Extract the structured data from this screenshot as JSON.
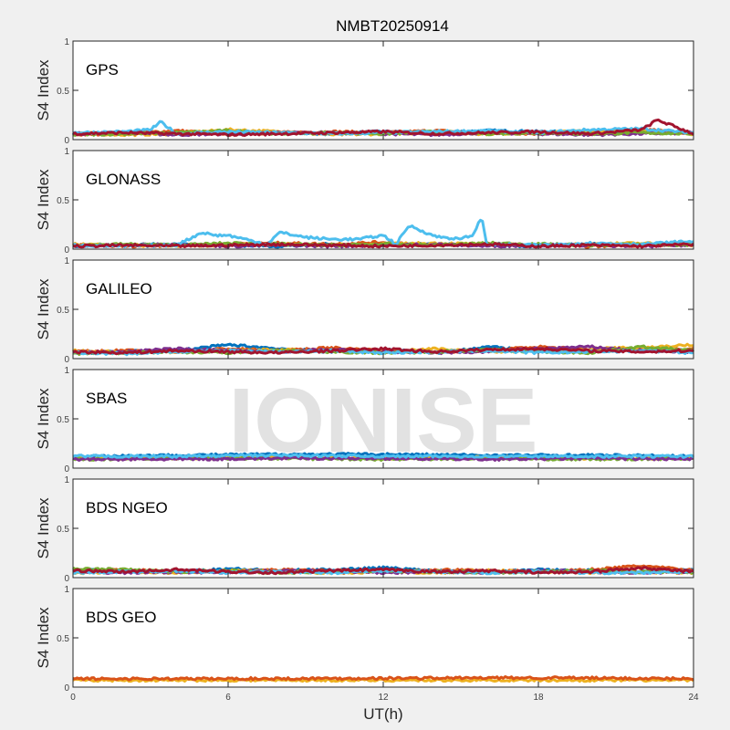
{
  "title": "NMBT20250914",
  "watermark": "IONISE",
  "xlabel": "UT(h)",
  "ylabel": "S4 Index",
  "xlim": [
    0,
    24
  ],
  "ylim": [
    0,
    1
  ],
  "xticks": [
    "0",
    "6",
    "12",
    "18",
    "24"
  ],
  "yticks": [
    "0",
    "0.5",
    "1"
  ],
  "chart_data": [
    {
      "type": "line",
      "title": "GPS",
      "xlabel": "UT(h)",
      "ylabel": "S4 Index",
      "xlim": [
        0,
        24
      ],
      "ylim": [
        0,
        1
      ],
      "series": [
        {
          "color": "#0072BD",
          "x": [
            0,
            2,
            4,
            6,
            8,
            10,
            12,
            14,
            16,
            18,
            20,
            22,
            24
          ],
          "y": [
            0.06,
            0.07,
            0.06,
            0.08,
            0.07,
            0.06,
            0.08,
            0.07,
            0.09,
            0.08,
            0.07,
            0.08,
            0.06
          ]
        },
        {
          "color": "#D95319",
          "x": [
            0,
            2,
            4,
            6,
            8,
            10,
            12,
            14,
            16,
            18,
            20,
            22,
            24
          ],
          "y": [
            0.05,
            0.06,
            0.09,
            0.06,
            0.07,
            0.08,
            0.07,
            0.09,
            0.07,
            0.06,
            0.08,
            0.1,
            0.07
          ]
        },
        {
          "color": "#EDB120",
          "x": [
            0,
            2,
            4,
            6,
            8,
            10,
            12,
            14,
            16,
            18,
            20,
            22,
            24
          ],
          "y": [
            0.07,
            0.05,
            0.06,
            0.1,
            0.08,
            0.05,
            0.06,
            0.07,
            0.06,
            0.07,
            0.09,
            0.1,
            0.05
          ]
        },
        {
          "color": "#7E2F8E",
          "x": [
            0,
            2,
            4,
            6,
            8,
            10,
            12,
            14,
            16,
            18,
            20,
            22,
            24
          ],
          "y": [
            0.06,
            0.07,
            0.05,
            0.06,
            0.07,
            0.07,
            0.06,
            0.05,
            0.07,
            0.06,
            0.05,
            0.06,
            0.07
          ]
        },
        {
          "color": "#77AC30",
          "x": [
            0,
            2,
            4,
            6,
            8,
            10,
            12,
            14,
            16,
            18,
            20,
            22,
            24
          ],
          "y": [
            0.05,
            0.06,
            0.07,
            0.09,
            0.06,
            0.07,
            0.06,
            0.08,
            0.06,
            0.07,
            0.06,
            0.07,
            0.06
          ]
        },
        {
          "color": "#4DBEEE",
          "x": [
            0,
            2,
            3,
            3.4,
            4,
            6,
            8,
            10,
            12,
            14,
            16,
            18,
            20,
            22,
            24
          ],
          "y": [
            0.07,
            0.08,
            0.1,
            0.18,
            0.06,
            0.08,
            0.07,
            0.06,
            0.07,
            0.08,
            0.09,
            0.07,
            0.1,
            0.11,
            0.07
          ]
        },
        {
          "color": "#A2142F",
          "x": [
            0,
            2,
            4,
            6,
            8,
            10,
            12,
            14,
            16,
            18,
            20,
            22,
            22.6,
            24
          ],
          "y": [
            0.06,
            0.07,
            0.06,
            0.05,
            0.06,
            0.07,
            0.08,
            0.06,
            0.07,
            0.08,
            0.06,
            0.1,
            0.2,
            0.06
          ]
        }
      ]
    },
    {
      "type": "line",
      "title": "GLONASS",
      "xlabel": "UT(h)",
      "ylabel": "S4 Index",
      "xlim": [
        0,
        24
      ],
      "ylim": [
        0,
        1
      ],
      "series": [
        {
          "color": "#0072BD",
          "x": [
            0,
            2,
            4,
            6,
            8,
            10,
            12,
            14,
            16,
            18,
            20,
            22,
            24
          ],
          "y": [
            0.03,
            0.04,
            0.05,
            0.04,
            0.03,
            0.05,
            0.04,
            0.05,
            0.04,
            0.03,
            0.05,
            0.04,
            0.06
          ]
        },
        {
          "color": "#D95319",
          "x": [
            0,
            2,
            4,
            6,
            8,
            10,
            12,
            14,
            16,
            18,
            20,
            22,
            24
          ],
          "y": [
            0.04,
            0.03,
            0.04,
            0.05,
            0.06,
            0.05,
            0.07,
            0.04,
            0.05,
            0.04,
            0.03,
            0.04,
            0.05
          ]
        },
        {
          "color": "#EDB120",
          "x": [
            0,
            2,
            4,
            6,
            8,
            10,
            12,
            14,
            16,
            18,
            20,
            22,
            24
          ],
          "y": [
            0.05,
            0.04,
            0.03,
            0.04,
            0.05,
            0.04,
            0.05,
            0.06,
            0.05,
            0.04,
            0.05,
            0.06,
            0.04
          ]
        },
        {
          "color": "#7E2F8E",
          "x": [
            0,
            2,
            4,
            6,
            8,
            10,
            12,
            14,
            16,
            18,
            20,
            22,
            24
          ],
          "y": [
            0.03,
            0.04,
            0.05,
            0.03,
            0.04,
            0.03,
            0.04,
            0.05,
            0.03,
            0.04,
            0.04,
            0.03,
            0.04
          ]
        },
        {
          "color": "#77AC30",
          "x": [
            0,
            2,
            4,
            6,
            8,
            10,
            12,
            14,
            16,
            18,
            20,
            22,
            24
          ],
          "y": [
            0.04,
            0.05,
            0.04,
            0.06,
            0.05,
            0.04,
            0.05,
            0.04,
            0.06,
            0.05,
            0.04,
            0.05,
            0.04
          ]
        },
        {
          "color": "#4DBEEE",
          "x": [
            0,
            2,
            4,
            5,
            5.5,
            6,
            7.5,
            8,
            9,
            10,
            11,
            12,
            12.5,
            13,
            14,
            15,
            15.5,
            15.8,
            16,
            18,
            20,
            22,
            24
          ],
          "y": [
            0.04,
            0.03,
            0.04,
            0.17,
            0.14,
            0.14,
            0.05,
            0.17,
            0.12,
            0.1,
            0.1,
            0.14,
            0.05,
            0.24,
            0.13,
            0.1,
            0.15,
            0.33,
            0.05,
            0.04,
            0.06,
            0.05,
            0.08
          ]
        },
        {
          "color": "#A2142F",
          "x": [
            0,
            2,
            4,
            6,
            8,
            10,
            12,
            14,
            16,
            18,
            20,
            22,
            24
          ],
          "y": [
            0.03,
            0.04,
            0.03,
            0.04,
            0.05,
            0.04,
            0.03,
            0.04,
            0.05,
            0.03,
            0.04,
            0.03,
            0.05
          ]
        }
      ]
    },
    {
      "type": "line",
      "title": "GALILEO",
      "xlabel": "UT(h)",
      "ylabel": "S4 Index",
      "xlim": [
        0,
        24
      ],
      "ylim": [
        0,
        1
      ],
      "series": [
        {
          "color": "#0072BD",
          "x": [
            0,
            2,
            4,
            6,
            8,
            10,
            12,
            14,
            16,
            18,
            20,
            22,
            24
          ],
          "y": [
            0.06,
            0.07,
            0.08,
            0.14,
            0.1,
            0.07,
            0.09,
            0.06,
            0.12,
            0.08,
            0.07,
            0.09,
            0.08
          ]
        },
        {
          "color": "#D95319",
          "x": [
            0,
            2,
            4,
            6,
            8,
            10,
            12,
            14,
            16,
            18,
            20,
            22,
            24
          ],
          "y": [
            0.07,
            0.08,
            0.07,
            0.1,
            0.08,
            0.11,
            0.08,
            0.07,
            0.08,
            0.12,
            0.09,
            0.08,
            0.1
          ]
        },
        {
          "color": "#EDB120",
          "x": [
            0,
            2,
            4,
            6,
            8,
            10,
            12,
            14,
            16,
            18,
            20,
            22,
            24
          ],
          "y": [
            0.08,
            0.06,
            0.07,
            0.08,
            0.09,
            0.07,
            0.08,
            0.1,
            0.07,
            0.08,
            0.1,
            0.11,
            0.14
          ]
        },
        {
          "color": "#7E2F8E",
          "x": [
            0,
            2,
            4,
            6,
            8,
            10,
            12,
            14,
            16,
            18,
            20,
            22,
            24
          ],
          "y": [
            0.06,
            0.07,
            0.1,
            0.08,
            0.07,
            0.09,
            0.07,
            0.06,
            0.07,
            0.1,
            0.12,
            0.08,
            0.07
          ]
        },
        {
          "color": "#77AC30",
          "x": [
            0,
            2,
            4,
            6,
            8,
            10,
            12,
            14,
            16,
            18,
            20,
            22,
            24
          ],
          "y": [
            0.05,
            0.06,
            0.07,
            0.06,
            0.08,
            0.07,
            0.06,
            0.07,
            0.09,
            0.07,
            0.06,
            0.12,
            0.08
          ]
        },
        {
          "color": "#4DBEEE",
          "x": [
            0,
            2,
            4,
            6,
            8,
            10,
            12,
            14,
            16,
            18,
            20,
            22,
            24
          ],
          "y": [
            0.06,
            0.05,
            0.07,
            0.08,
            0.07,
            0.08,
            0.06,
            0.07,
            0.08,
            0.06,
            0.07,
            0.08,
            0.06
          ]
        },
        {
          "color": "#A2142F",
          "x": [
            0,
            2,
            4,
            6,
            8,
            10,
            12,
            14,
            16,
            18,
            20,
            22,
            24
          ],
          "y": [
            0.07,
            0.06,
            0.08,
            0.07,
            0.06,
            0.08,
            0.1,
            0.07,
            0.09,
            0.1,
            0.08,
            0.07,
            0.08
          ]
        }
      ]
    },
    {
      "type": "line",
      "title": "SBAS",
      "xlabel": "UT(h)",
      "ylabel": "S4 Index",
      "xlim": [
        0,
        24
      ],
      "ylim": [
        0,
        1
      ],
      "series": [
        {
          "color": "#0072BD",
          "x": [
            0,
            4,
            8,
            12,
            16,
            20,
            24
          ],
          "y": [
            0.12,
            0.13,
            0.14,
            0.14,
            0.13,
            0.13,
            0.12
          ]
        },
        {
          "color": "#EDB120",
          "x": [
            0,
            4,
            8,
            12,
            16,
            20,
            24
          ],
          "y": [
            0.1,
            0.1,
            0.11,
            0.1,
            0.11,
            0.1,
            0.1
          ]
        },
        {
          "color": "#77AC30",
          "x": [
            0,
            4,
            8,
            12,
            16,
            20,
            24
          ],
          "y": [
            0.09,
            0.1,
            0.1,
            0.09,
            0.1,
            0.09,
            0.1
          ]
        },
        {
          "color": "#7E2F8E",
          "x": [
            0,
            4,
            8,
            12,
            16,
            20,
            24
          ],
          "y": [
            0.09,
            0.09,
            0.1,
            0.1,
            0.09,
            0.1,
            0.09
          ]
        },
        {
          "color": "#4DBEEE",
          "x": [
            0,
            4,
            8,
            12,
            16,
            20,
            24
          ],
          "y": [
            0.12,
            0.12,
            0.13,
            0.12,
            0.12,
            0.12,
            0.12
          ]
        }
      ]
    },
    {
      "type": "line",
      "title": "BDS NGEO",
      "xlabel": "UT(h)",
      "ylabel": "S4 Index",
      "xlim": [
        0,
        24
      ],
      "ylim": [
        0,
        1
      ],
      "series": [
        {
          "color": "#0072BD",
          "x": [
            0,
            2,
            4,
            6,
            8,
            10,
            12,
            14,
            16,
            18,
            20,
            22,
            24
          ],
          "y": [
            0.08,
            0.07,
            0.06,
            0.09,
            0.07,
            0.08,
            0.1,
            0.07,
            0.06,
            0.08,
            0.07,
            0.06,
            0.08
          ]
        },
        {
          "color": "#D95319",
          "x": [
            0,
            2,
            4,
            6,
            8,
            10,
            12,
            14,
            16,
            18,
            20,
            22,
            24
          ],
          "y": [
            0.06,
            0.08,
            0.07,
            0.06,
            0.08,
            0.07,
            0.06,
            0.08,
            0.07,
            0.06,
            0.08,
            0.12,
            0.07
          ]
        },
        {
          "color": "#EDB120",
          "x": [
            0,
            2,
            4,
            6,
            8,
            10,
            12,
            14,
            16,
            18,
            20,
            22,
            24
          ],
          "y": [
            0.05,
            0.06,
            0.05,
            0.07,
            0.06,
            0.05,
            0.06,
            0.05,
            0.07,
            0.06,
            0.05,
            0.06,
            0.05
          ]
        },
        {
          "color": "#7E2F8E",
          "x": [
            0,
            2,
            4,
            6,
            8,
            10,
            12,
            14,
            16,
            18,
            20,
            22,
            24
          ],
          "y": [
            0.06,
            0.05,
            0.06,
            0.05,
            0.07,
            0.06,
            0.05,
            0.06,
            0.05,
            0.07,
            0.06,
            0.05,
            0.06
          ]
        },
        {
          "color": "#77AC30",
          "x": [
            0,
            2,
            4,
            6,
            8,
            10,
            12,
            14,
            16,
            18,
            20,
            22,
            24
          ],
          "y": [
            0.09,
            0.08,
            0.06,
            0.07,
            0.05,
            0.06,
            0.07,
            0.06,
            0.05,
            0.06,
            0.07,
            0.06,
            0.05
          ]
        },
        {
          "color": "#4DBEEE",
          "x": [
            0,
            2,
            4,
            6,
            8,
            10,
            12,
            14,
            16,
            18,
            20,
            22,
            24
          ],
          "y": [
            0.05,
            0.06,
            0.07,
            0.05,
            0.06,
            0.05,
            0.07,
            0.06,
            0.05,
            0.06,
            0.05,
            0.05,
            0.06
          ]
        },
        {
          "color": "#A2142F",
          "x": [
            0,
            2,
            4,
            6,
            8,
            10,
            12,
            14,
            16,
            18,
            20,
            22,
            24
          ],
          "y": [
            0.07,
            0.06,
            0.08,
            0.06,
            0.05,
            0.07,
            0.08,
            0.06,
            0.07,
            0.05,
            0.06,
            0.1,
            0.06
          ]
        }
      ]
    },
    {
      "type": "line",
      "title": "BDS GEO",
      "xlabel": "UT(h)",
      "ylabel": "S4 Index",
      "xlim": [
        0,
        24
      ],
      "ylim": [
        0,
        1
      ],
      "series": [
        {
          "color": "#EDB120",
          "x": [
            0,
            6,
            12,
            18,
            24
          ],
          "y": [
            0.07,
            0.07,
            0.07,
            0.07,
            0.07
          ]
        },
        {
          "color": "#D95319",
          "x": [
            0,
            6,
            12,
            18,
            24
          ],
          "y": [
            0.085,
            0.085,
            0.09,
            0.095,
            0.085
          ]
        }
      ]
    }
  ]
}
